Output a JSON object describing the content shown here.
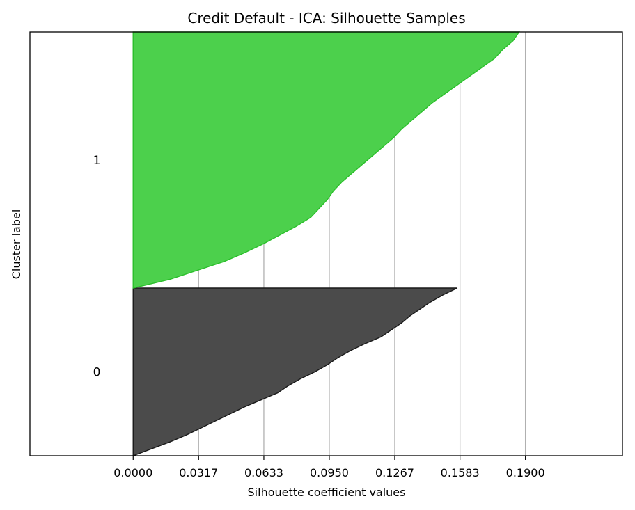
{
  "chart_data": {
    "type": "area",
    "subtype": "silhouette",
    "title": "Credit Default - ICA: Silhouette Samples",
    "xlabel": "Silhouette coefficient values",
    "ylabel": "Cluster label",
    "xlim": [
      -0.05,
      0.237
    ],
    "x_ticks": [
      0.0,
      0.0317,
      0.0633,
      0.095,
      0.1267,
      0.1583,
      0.19
    ],
    "x_tick_labels": [
      "0.0000",
      "0.0317",
      "0.0633",
      "0.0950",
      "0.1267",
      "0.1583",
      "0.1900"
    ],
    "grid": "vertical",
    "series": [
      {
        "name": "0",
        "label": "0",
        "color": "#4b4b4b",
        "edge_color": "#1a1a1a",
        "sorted_silhouette_values": [
          0.0,
          0.009,
          0.018,
          0.026,
          0.033,
          0.04,
          0.047,
          0.054,
          0.062,
          0.07,
          0.075,
          0.081,
          0.088,
          0.094,
          0.099,
          0.105,
          0.112,
          0.12,
          0.125,
          0.13,
          0.134,
          0.139,
          0.144,
          0.15,
          0.157
        ]
      },
      {
        "name": "1",
        "label": "1",
        "color": "#4cd04c",
        "edge_color": "#2bbf2b",
        "sorted_silhouette_values": [
          0.0,
          0.018,
          0.031,
          0.044,
          0.054,
          0.063,
          0.071,
          0.079,
          0.086,
          0.09,
          0.094,
          0.097,
          0.101,
          0.106,
          0.111,
          0.116,
          0.121,
          0.126,
          0.13,
          0.135,
          0.14,
          0.145,
          0.151,
          0.157,
          0.163,
          0.169,
          0.175,
          0.179,
          0.184,
          0.187
        ]
      }
    ]
  }
}
